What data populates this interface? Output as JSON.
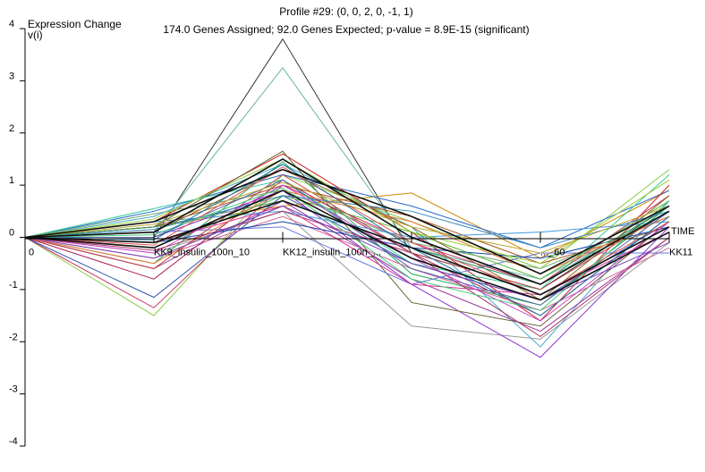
{
  "chart_data": {
    "type": "line",
    "title": "Profile #29: (0, 0, 2, 0, -1, 1)",
    "subtitle": "174.0 Genes Assigned; 92.0 Genes Expected; p-value = 8.9E-15 (significant)",
    "ylabel_line1": "Expression Change",
    "ylabel_line2": "v(i)",
    "xlabel": "TIME",
    "x": [
      0,
      1,
      2,
      3,
      4,
      5
    ],
    "x_tick_labels": [
      "0",
      "KK9_insulin_100n_10",
      "KK12_insulin_100n_...",
      "",
      "..._60",
      "KK11"
    ],
    "ylim": [
      -4,
      4
    ],
    "y_ticks": [
      4,
      3,
      2,
      1,
      0,
      -1,
      -2,
      -3,
      -4
    ],
    "profile": [
      0,
      0,
      2,
      0,
      -1,
      1
    ],
    "profile_series": [
      [
        0,
        -0.1,
        0.7,
        -0.2,
        -1.1,
        0.2
      ],
      [
        0,
        0.3,
        1.3,
        0.4,
        -0.7,
        0.6
      ],
      [
        0,
        -0.2,
        0.9,
        -0.4,
        -1.2,
        0.1
      ],
      [
        0,
        0.1,
        1.5,
        0.0,
        -0.9,
        0.5
      ]
    ],
    "series": [
      {
        "color": "#333333",
        "values": [
          0,
          0.0,
          3.8,
          -0.3,
          -1.0,
          0.6
        ]
      },
      {
        "color": "#66b3a8",
        "values": [
          0,
          0.1,
          3.25,
          -0.2,
          -0.8,
          0.5
        ]
      },
      {
        "color": "#88cc44",
        "values": [
          0,
          -1.5,
          1.2,
          0.3,
          -0.6,
          1.3
        ]
      },
      {
        "color": "#cc3366",
        "values": [
          0,
          -1.35,
          1.0,
          -0.1,
          -0.9,
          0.8
        ]
      },
      {
        "color": "#3355aa",
        "values": [
          0,
          -1.15,
          0.8,
          -0.5,
          -1.2,
          0.3
        ]
      },
      {
        "color": "#aa2255",
        "values": [
          0,
          -0.8,
          1.1,
          -0.3,
          -1.5,
          0.4
        ]
      },
      {
        "color": "#cc8800",
        "values": [
          0,
          0.2,
          0.6,
          0.85,
          -0.4,
          0.9
        ]
      },
      {
        "color": "#999999",
        "values": [
          0,
          -0.3,
          0.5,
          -1.7,
          -1.95,
          -0.1
        ]
      },
      {
        "color": "#8833cc",
        "values": [
          0,
          0.0,
          0.9,
          -0.9,
          -2.3,
          0.2
        ]
      },
      {
        "color": "#44aacc",
        "values": [
          0,
          0.4,
          1.4,
          0.2,
          -2.1,
          0.7
        ]
      },
      {
        "color": "#2266cc",
        "values": [
          0,
          0.5,
          1.2,
          0.6,
          -0.2,
          0.9
        ]
      },
      {
        "color": "#cc2222",
        "values": [
          0,
          0.3,
          1.6,
          0.1,
          -1.6,
          1.0
        ]
      },
      {
        "color": "#22aa55",
        "values": [
          0,
          -0.5,
          1.45,
          -0.7,
          -1.3,
          0.6
        ]
      },
      {
        "color": "#666633",
        "values": [
          0,
          0.2,
          1.65,
          -1.25,
          -1.7,
          0.3
        ]
      },
      {
        "color": "#993399",
        "values": [
          0,
          -0.6,
          0.7,
          -0.8,
          -1.8,
          0.0
        ]
      },
      {
        "color": "#33cc99",
        "values": [
          0,
          0.55,
          1.1,
          -0.5,
          -1.0,
          1.2
        ]
      },
      {
        "color": "#cc6699",
        "values": [
          0,
          -0.4,
          0.4,
          -0.6,
          -1.4,
          -0.2
        ]
      },
      {
        "color": "#6677dd",
        "values": [
          0,
          0.1,
          0.2,
          -0.9,
          -0.3,
          -0.3
        ]
      },
      {
        "color": "#aa5522",
        "values": [
          0,
          0.2,
          1.0,
          0.4,
          -0.5,
          0.2
        ]
      },
      {
        "color": "#55bb33",
        "values": [
          0,
          -0.2,
          0.8,
          0.1,
          -0.8,
          0.7
        ]
      },
      {
        "color": "#dd3399",
        "values": [
          0,
          -0.1,
          0.6,
          -0.9,
          -1.1,
          0.1
        ]
      },
      {
        "color": "#1144aa",
        "values": [
          0,
          -0.1,
          0.3,
          -0.2,
          -0.4,
          0.2
        ]
      },
      {
        "color": "#77aa77",
        "values": [
          0,
          0.45,
          0.9,
          -0.1,
          -0.6,
          0.4
        ]
      },
      {
        "color": "#bb4444",
        "values": [
          0,
          -0.6,
          1.2,
          -0.3,
          -1.0,
          0.5
        ]
      },
      {
        "color": "#4499dd",
        "values": [
          0,
          0.3,
          0.5,
          0.0,
          0.1,
          0.3
        ]
      },
      {
        "color": "#886622",
        "values": [
          0,
          0.1,
          1.3,
          0.2,
          -1.2,
          0.8
        ]
      },
      {
        "color": "#cc44cc",
        "values": [
          0,
          -0.3,
          1.0,
          -0.4,
          -1.6,
          0.3
        ]
      },
      {
        "color": "#339966",
        "values": [
          0,
          0.2,
          0.7,
          -0.2,
          -0.9,
          0.6
        ]
      },
      {
        "color": "#ee7733",
        "values": [
          0,
          -0.5,
          0.9,
          0.3,
          -0.7,
          0.4
        ]
      },
      {
        "color": "#5566aa",
        "values": [
          0,
          0.0,
          1.1,
          -0.6,
          -1.3,
          0.5
        ]
      },
      {
        "color": "#99cc33",
        "values": [
          0,
          0.35,
          1.5,
          0.1,
          -0.5,
          1.1
        ]
      },
      {
        "color": "#aa3366",
        "values": [
          0,
          -0.25,
          0.5,
          -0.3,
          -1.9,
          0.0
        ]
      },
      {
        "color": "#3388bb",
        "values": [
          0,
          0.15,
          0.8,
          0.5,
          -0.2,
          0.5
        ]
      },
      {
        "color": "#dd5555",
        "values": [
          0,
          -0.15,
          1.35,
          -0.1,
          -1.1,
          0.3
        ]
      },
      {
        "color": "#44cc77",
        "values": [
          0,
          0.05,
          0.95,
          -0.8,
          -1.4,
          0.7
        ]
      },
      {
        "color": "#7744bb",
        "values": [
          0,
          -0.4,
          0.6,
          -0.5,
          -1.2,
          -0.1
        ]
      },
      {
        "color": "#bbaa33",
        "values": [
          0,
          0.25,
          1.05,
          0.2,
          -0.3,
          0.6
        ]
      },
      {
        "color": "#2277aa",
        "values": [
          0,
          -0.05,
          1.4,
          -0.2,
          -1.5,
          0.4
        ]
      }
    ]
  }
}
